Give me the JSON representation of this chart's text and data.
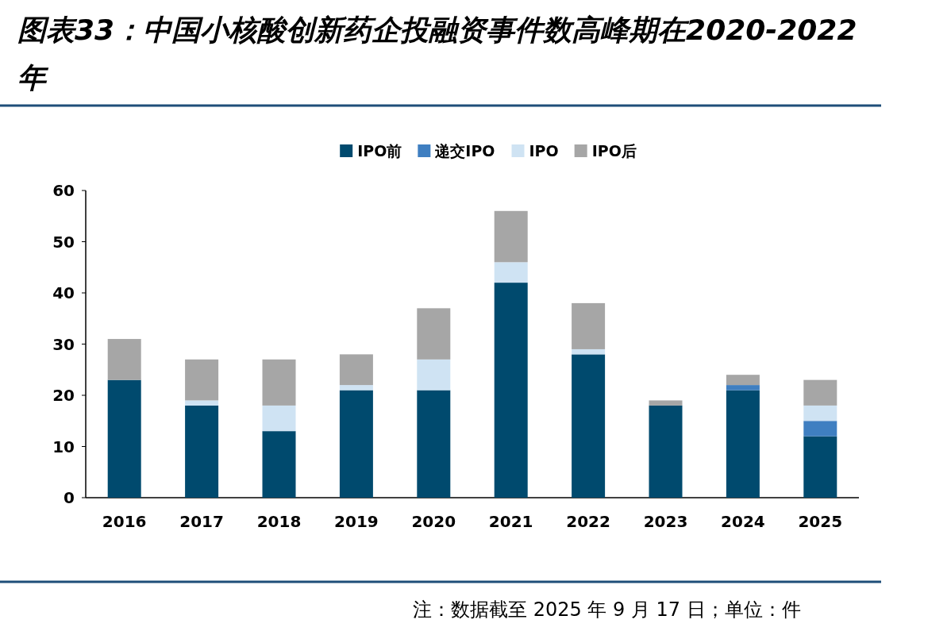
{
  "chart_data": {
    "type": "bar",
    "stacked": true,
    "title": "图表33：中国小核酸创新药企投融资事件数高峰期在2020-2022 年",
    "categories": [
      "2016",
      "2017",
      "2018",
      "2019",
      "2020",
      "2021",
      "2022",
      "2023",
      "2024",
      "2025"
    ],
    "series": [
      {
        "name": "IPO前",
        "color": "#004a6e",
        "values": [
          23,
          18,
          13,
          21,
          21,
          42,
          28,
          18,
          21,
          12
        ]
      },
      {
        "name": "递交IPO",
        "color": "#3f7fc1",
        "values": [
          0,
          0,
          0,
          0,
          0,
          0,
          0,
          0,
          1,
          3
        ]
      },
      {
        "name": "IPO",
        "color": "#cfe3f3",
        "values": [
          0,
          1,
          5,
          1,
          6,
          4,
          1,
          0,
          0,
          3
        ]
      },
      {
        "name": "IPO后",
        "color": "#a6a6a6",
        "values": [
          8,
          8,
          9,
          6,
          10,
          10,
          9,
          1,
          2,
          5
        ]
      }
    ],
    "ylim": [
      0,
      60
    ],
    "yticks": [
      0,
      10,
      20,
      30,
      40,
      50,
      60
    ],
    "legend": "top",
    "annotations": [
      "注：数据截至 2025 年 9 月 17 日；单位：件"
    ]
  }
}
